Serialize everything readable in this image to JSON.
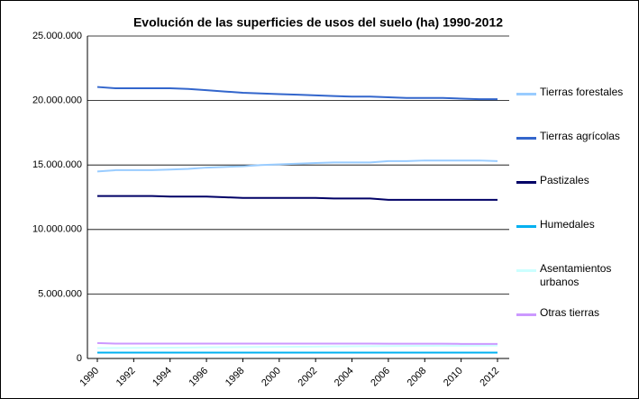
{
  "chart_data": {
    "type": "line",
    "title": "Evolución de las superficies de usos del suelo (ha) 1990-2012",
    "x": [
      1990,
      1991,
      1992,
      1993,
      1994,
      1995,
      1996,
      1997,
      1998,
      1999,
      2000,
      2001,
      2002,
      2003,
      2004,
      2005,
      2006,
      2007,
      2008,
      2009,
      2010,
      2011,
      2012
    ],
    "xlim": [
      1990,
      2012
    ],
    "xticks": [
      1990,
      1992,
      1994,
      1996,
      1998,
      2000,
      2002,
      2004,
      2006,
      2008,
      2010,
      2012
    ],
    "ylim": [
      0,
      25000000
    ],
    "yticks": [
      0,
      {
        "value": 5000000,
        "label": "5.000.000"
      },
      {
        "value": 10000000,
        "label": "10.000.000"
      },
      {
        "value": 15000000,
        "label": "15.000.000"
      },
      {
        "value": 20000000,
        "label": "20.000.000"
      },
      {
        "value": 25000000,
        "label": "25.000.000"
      }
    ],
    "grid": true,
    "legend": "right",
    "series": [
      {
        "name": "Tierras forestales",
        "color": "#99ccff",
        "values": [
          14500000,
          14600000,
          14600000,
          14600000,
          14650000,
          14700000,
          14800000,
          14850000,
          14900000,
          15000000,
          15050000,
          15100000,
          15150000,
          15200000,
          15200000,
          15200000,
          15300000,
          15300000,
          15350000,
          15350000,
          15350000,
          15350000,
          15300000
        ]
      },
      {
        "name": "Tierras agrícolas",
        "color": "#3366cc",
        "values": [
          21050000,
          20950000,
          20950000,
          20950000,
          20950000,
          20900000,
          20800000,
          20700000,
          20600000,
          20550000,
          20500000,
          20450000,
          20400000,
          20350000,
          20300000,
          20300000,
          20250000,
          20200000,
          20200000,
          20200000,
          20150000,
          20100000,
          20100000
        ]
      },
      {
        "name": "Pastizales",
        "color": "#000066",
        "values": [
          12600000,
          12600000,
          12600000,
          12600000,
          12550000,
          12550000,
          12550000,
          12500000,
          12450000,
          12450000,
          12450000,
          12450000,
          12450000,
          12400000,
          12400000,
          12400000,
          12300000,
          12300000,
          12300000,
          12300000,
          12300000,
          12300000,
          12300000
        ]
      },
      {
        "name": "Humedales",
        "color": "#00b0f0",
        "values": [
          450000,
          450000,
          450000,
          450000,
          450000,
          450000,
          450000,
          450000,
          450000,
          450000,
          450000,
          450000,
          450000,
          450000,
          450000,
          450000,
          450000,
          450000,
          450000,
          450000,
          450000,
          450000,
          450000
        ]
      },
      {
        "name": "Asentamientos urbanos",
        "color": "#ccffff",
        "values": [
          800000,
          810000,
          820000,
          830000,
          840000,
          850000,
          860000,
          870000,
          880000,
          890000,
          900000,
          910000,
          920000,
          930000,
          940000,
          950000,
          960000,
          970000,
          980000,
          985000,
          990000,
          995000,
          1000000
        ]
      },
      {
        "name": "Otras tierras",
        "color": "#cc99ff",
        "values": [
          1200000,
          1150000,
          1150000,
          1150000,
          1150000,
          1150000,
          1150000,
          1150000,
          1150000,
          1150000,
          1150000,
          1150000,
          1150000,
          1150000,
          1150000,
          1150000,
          1140000,
          1140000,
          1140000,
          1140000,
          1130000,
          1130000,
          1130000
        ]
      }
    ]
  }
}
